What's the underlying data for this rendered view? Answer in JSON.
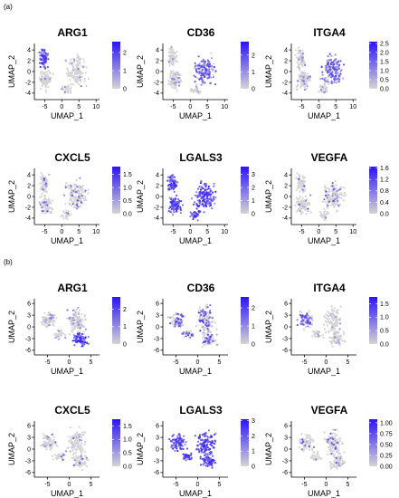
{
  "sections": [
    {
      "label": "(a)",
      "panels": [
        {
          "gene": "ARG1",
          "xlabel": "UMAP_1",
          "ylabel": "UMAP_2",
          "xticks": [
            -5,
            0,
            5,
            10
          ],
          "yticks": [
            -4,
            -2,
            0,
            2,
            4
          ],
          "colorbar_ticks": [
            "0",
            "1",
            "2"
          ],
          "colorbar_range": [
            0,
            2.6
          ],
          "expression_region": "upper-left cluster"
        },
        {
          "gene": "CD36",
          "xlabel": "UMAP_1",
          "ylabel": "UMAP_2",
          "xticks": [
            -5,
            0,
            5,
            10
          ],
          "yticks": [
            -4,
            -2,
            0,
            2,
            4
          ],
          "colorbar_ticks": [
            "0",
            "1",
            "2"
          ],
          "colorbar_range": [
            0,
            2.8
          ],
          "expression_region": "right cluster"
        },
        {
          "gene": "ITGA4",
          "xlabel": "UMAP_1",
          "ylabel": "UMAP_2",
          "xticks": [
            -5,
            0,
            5,
            10
          ],
          "yticks": [
            -4,
            -2,
            0,
            2,
            4
          ],
          "colorbar_ticks": [
            "0.0",
            "0.5",
            "1.0",
            "1.5",
            "2.0",
            "2.5"
          ],
          "colorbar_range": [
            0,
            2.6
          ],
          "expression_region": "right cluster"
        },
        {
          "gene": "CXCL5",
          "xlabel": "UMAP_1",
          "ylabel": "UMAP_2",
          "xticks": [
            -5,
            0,
            5,
            10
          ],
          "yticks": [
            -4,
            -2,
            0,
            2,
            4
          ],
          "colorbar_ticks": [
            "0.0",
            "0.5",
            "1.0",
            "1.5"
          ],
          "colorbar_range": [
            0,
            1.8
          ],
          "expression_region": "sparse"
        },
        {
          "gene": "LGALS3",
          "xlabel": "UMAP_1",
          "ylabel": "UMAP_2",
          "xticks": [
            -5,
            0,
            5,
            10
          ],
          "yticks": [
            -4,
            -2,
            0,
            2,
            4
          ],
          "colorbar_ticks": [
            "0",
            "1",
            "2",
            "3"
          ],
          "colorbar_range": [
            0,
            3.6
          ],
          "expression_region": "widespread"
        },
        {
          "gene": "VEGFA",
          "xlabel": "UMAP_1",
          "ylabel": "UMAP_2",
          "xticks": [
            -5,
            0,
            5,
            10
          ],
          "yticks": [
            -4,
            -2,
            0,
            2,
            4
          ],
          "colorbar_ticks": [
            "0.0",
            "0.4",
            "0.8",
            "1.2",
            "1.6"
          ],
          "colorbar_range": [
            0,
            1.65
          ],
          "expression_region": "sparse"
        }
      ]
    },
    {
      "label": "(b)",
      "panels": [
        {
          "gene": "ARG1",
          "xlabel": "UMAP_1",
          "ylabel": "UMAP_2",
          "xticks": [
            -5,
            0,
            5
          ],
          "yticks": [
            -6,
            -3,
            0,
            3,
            6
          ],
          "colorbar_ticks": [
            "0",
            "1",
            "2"
          ],
          "colorbar_range": [
            0,
            2.7
          ],
          "expression_region": "lower-right cluster"
        },
        {
          "gene": "CD36",
          "xlabel": "UMAP_1",
          "ylabel": "UMAP_2",
          "xticks": [
            -5,
            0,
            5
          ],
          "yticks": [
            -6,
            -3,
            0,
            3,
            6
          ],
          "colorbar_ticks": [
            "0",
            "1",
            "2"
          ],
          "colorbar_range": [
            0,
            2.6
          ],
          "expression_region": "scattered"
        },
        {
          "gene": "ITGA4",
          "xlabel": "UMAP_1",
          "ylabel": "UMAP_2",
          "xticks": [
            -5,
            0,
            5
          ],
          "yticks": [
            -6,
            -3,
            0,
            3,
            6
          ],
          "colorbar_ticks": [
            "0.0",
            "0.5",
            "1.0",
            "1.5"
          ],
          "colorbar_range": [
            0,
            1.75
          ],
          "expression_region": "left cluster"
        },
        {
          "gene": "CXCL5",
          "xlabel": "UMAP_1",
          "ylabel": "UMAP_2",
          "xticks": [
            -5,
            0,
            5
          ],
          "yticks": [
            -6,
            -3,
            0,
            3,
            6
          ],
          "colorbar_ticks": [
            "0.0",
            "0.5",
            "1.0",
            "1.5"
          ],
          "colorbar_range": [
            0,
            1.75
          ],
          "expression_region": "sparse"
        },
        {
          "gene": "LGALS3",
          "xlabel": "UMAP_1",
          "ylabel": "UMAP_2",
          "xticks": [
            -5,
            0,
            5
          ],
          "yticks": [
            -6,
            -3,
            0,
            3,
            6
          ],
          "colorbar_ticks": [
            "0",
            "1",
            "2",
            "3"
          ],
          "colorbar_range": [
            0,
            3.1
          ],
          "expression_region": "widespread"
        },
        {
          "gene": "VEGFA",
          "xlabel": "UMAP_1",
          "ylabel": "UMAP_2",
          "xticks": [
            -5,
            0,
            5
          ],
          "yticks": [
            -6,
            -3,
            0,
            3,
            6
          ],
          "colorbar_ticks": [
            "0.00",
            "0.25",
            "0.50",
            "0.75",
            "1.00"
          ],
          "colorbar_range": [
            0,
            1.08
          ],
          "expression_region": "sparse"
        }
      ]
    }
  ],
  "colors": {
    "low": "#d4d4d4",
    "high": "#2b14f5"
  },
  "chart_data": {
    "type": "scatter",
    "layout": "2 sections x 2 rows x 3 columns of UMAP feature plots",
    "grid": false,
    "legend": "right of each panel (colorbar)"
  }
}
